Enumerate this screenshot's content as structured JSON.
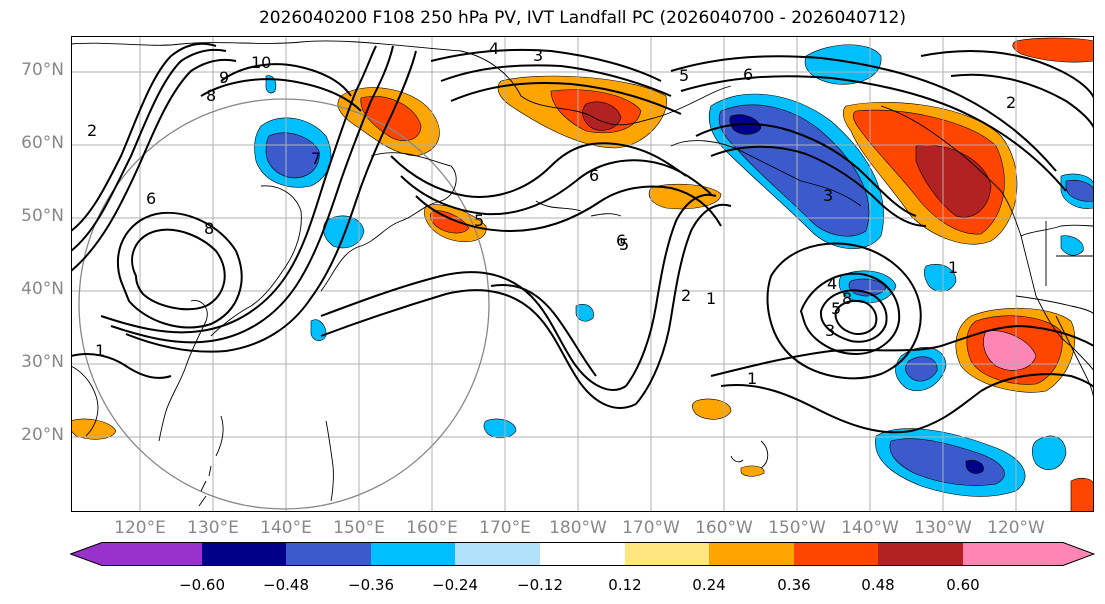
{
  "title": "2026040200 F108 250 hPa PV, IVT Landfall PC (2026040700 - 2026040712)",
  "lat_labels": [
    "70°N",
    "60°N",
    "50°N",
    "40°N",
    "30°N",
    "20°N"
  ],
  "lon_labels": [
    "120°E",
    "130°E",
    "140°E",
    "150°E",
    "160°E",
    "170°E",
    "180°W",
    "170°W",
    "160°W",
    "150°W",
    "140°W",
    "130°W",
    "120°W"
  ],
  "colorbar": {
    "ticks": [
      "−0.60",
      "−0.48",
      "−0.36",
      "−0.24",
      "−0.12",
      "0.12",
      "0.24",
      "0.36",
      "0.48",
      "0.60"
    ],
    "colors": [
      "#9932cc",
      "#00008b",
      "#3b5bcc",
      "#00bfff",
      "#b0e0fa",
      "#ffffff",
      "#ffe680",
      "#ffa500",
      "#ff4500",
      "#b22222",
      "#ff85b4"
    ]
  },
  "contour_labels": [
    "10",
    "9",
    "8",
    "2",
    "7",
    "6",
    "8",
    "1",
    "4",
    "3",
    "5",
    "6",
    "5",
    "6",
    "2",
    "1",
    "3",
    "5",
    "8",
    "4",
    "1",
    "1",
    "5",
    "2",
    "6",
    "3"
  ],
  "colors": {
    "axis_text": "#888888",
    "grid": "#b0b0b0"
  }
}
